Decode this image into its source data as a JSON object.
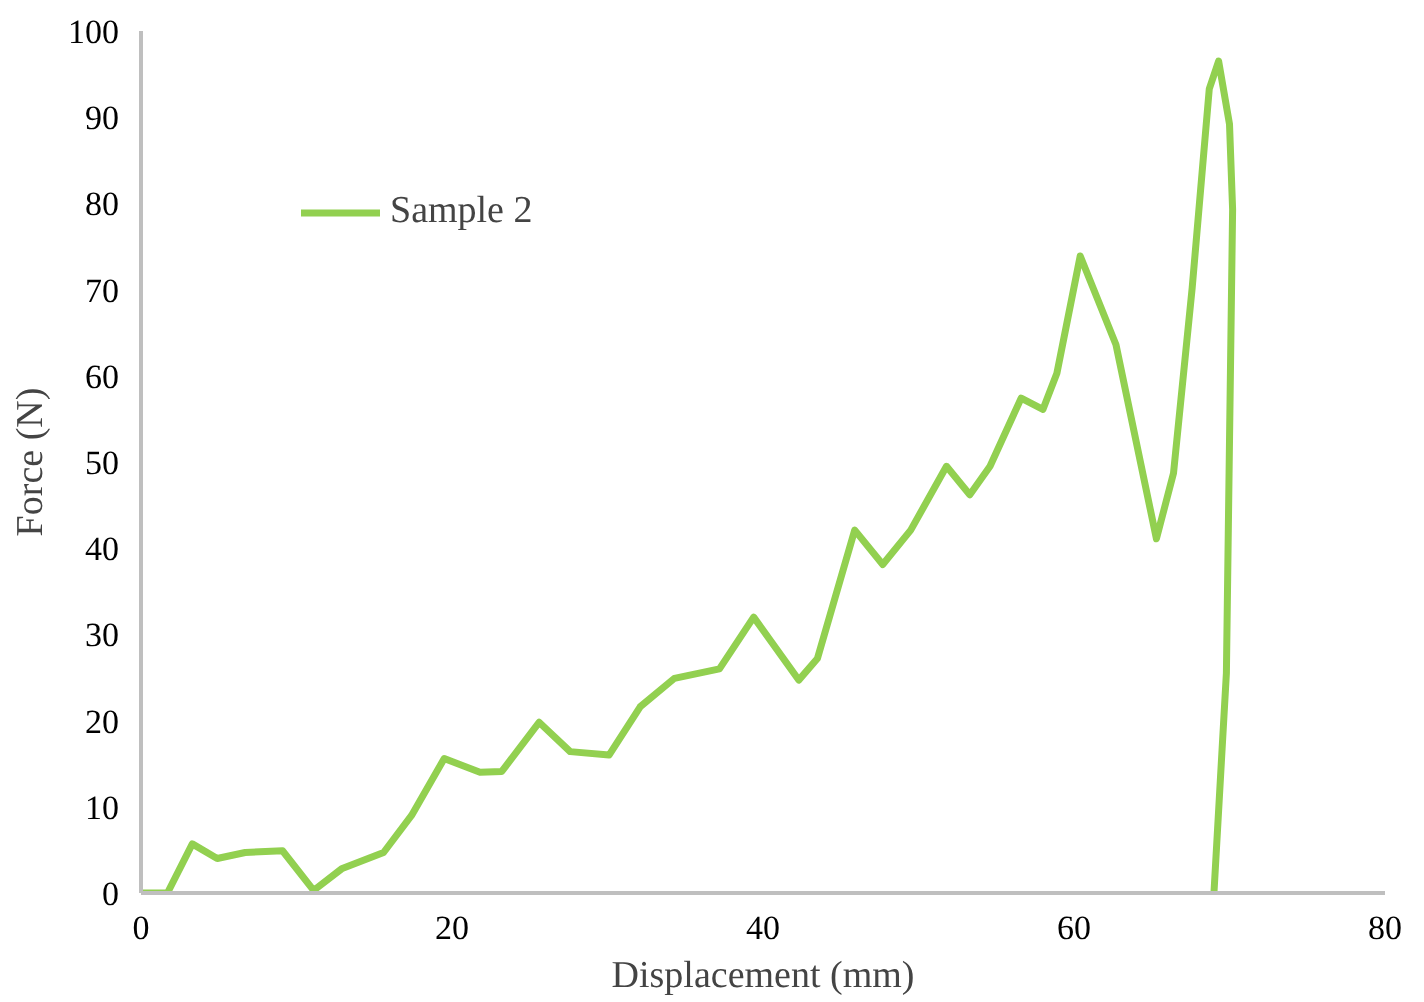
{
  "chart_data": {
    "type": "line",
    "xlabel": "Displacement (mm)",
    "ylabel": "Force (N)",
    "xlim": [
      0,
      80
    ],
    "ylim": [
      0,
      100
    ],
    "xticks": [
      0,
      20,
      40,
      60,
      80
    ],
    "yticks": [
      0,
      10,
      20,
      30,
      40,
      50,
      60,
      70,
      80,
      90,
      100
    ],
    "grid": false,
    "legend": "top left",
    "marker": "none",
    "line_style": "solid",
    "series": [
      {
        "name": "Sample 2",
        "color": "#92d050",
        "x": [
          0,
          1.7,
          3.3,
          4.9,
          6.7,
          9.1,
          11.1,
          12.9,
          15.6,
          17.4,
          19.5,
          21.8,
          23.2,
          25.6,
          27.6,
          30.1,
          32.1,
          34.3,
          37.2,
          39.4,
          42.3,
          43.5,
          45.9,
          47.7,
          49.5,
          51.8,
          53.3,
          54.6,
          56.6,
          58.0,
          58.9,
          60.4,
          62.7,
          65.3,
          66.4,
          67.6,
          68.7,
          69.3,
          70.0,
          70.2,
          69.8,
          69.0
        ],
        "values": [
          0,
          0,
          5.7,
          4.0,
          4.7,
          4.9,
          0.3,
          2.8,
          4.7,
          9.0,
          15.6,
          14.0,
          14.1,
          19.8,
          16.4,
          16.0,
          21.6,
          24.9,
          26.0,
          32.0,
          24.7,
          27.2,
          42.1,
          38.1,
          42.1,
          49.5,
          46.2,
          49.5,
          57.4,
          56.1,
          60.3,
          73.9,
          63.6,
          41.1,
          48.7,
          70.2,
          93.3,
          96.5,
          89.2,
          79.3,
          25.5,
          0
        ]
      }
    ]
  }
}
